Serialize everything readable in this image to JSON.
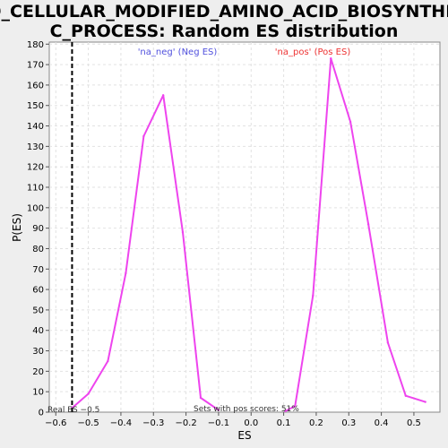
{
  "chart_data": {
    "type": "line",
    "title_line1": "GO_CELLULAR_MODIFIED_AMINO_ACID_BIOSYNTHETI",
    "title_line2": "C_PROCESS: Random ES distribution",
    "xlabel": "ES",
    "ylabel": "P(ES)",
    "xlim": [
      -0.62,
      0.58
    ],
    "ylim": [
      0,
      181
    ],
    "x_ticks": [
      -0.6,
      -0.5,
      -0.4,
      -0.3,
      -0.2,
      -0.1,
      0.0,
      0.1,
      0.2,
      0.3,
      0.4,
      0.5
    ],
    "x_tick_labels": [
      "−0.6",
      "−0.5",
      "−0.4",
      "−0.3",
      "−0.2",
      "−0.1",
      "0.0",
      "0.1",
      "0.2",
      "0.3",
      "0.4",
      "0.5"
    ],
    "y_ticks": [
      0,
      10,
      20,
      30,
      40,
      50,
      60,
      70,
      80,
      90,
      100,
      110,
      120,
      130,
      140,
      150,
      160,
      170,
      180
    ],
    "grid": true,
    "series_color": "#ee44ee",
    "series": [
      {
        "name": "na_neg",
        "points": [
          [
            -0.55,
            2
          ],
          [
            -0.5,
            9
          ],
          [
            -0.44,
            25
          ],
          [
            -0.385,
            68
          ],
          [
            -0.33,
            135
          ],
          [
            -0.27,
            155
          ],
          [
            -0.21,
            88
          ],
          [
            -0.155,
            7
          ],
          [
            -0.1,
            1
          ]
        ]
      },
      {
        "name": "na_pos",
        "points": [
          [
            0.105,
            0.5
          ],
          [
            0.135,
            3
          ],
          [
            0.19,
            57
          ],
          [
            0.245,
            173
          ],
          [
            0.305,
            142
          ],
          [
            0.36,
            92
          ],
          [
            0.42,
            34
          ],
          [
            0.475,
            8
          ],
          [
            0.535,
            5
          ]
        ]
      }
    ],
    "legend": [
      {
        "label": "'na_neg' (Neg ES)",
        "color": "#5050dd"
      },
      {
        "label": "'na_pos' (Pos ES)",
        "color": "#ee3333"
      }
    ],
    "real_es": -0.55,
    "real_es_label": "Real ES −0.5",
    "annotation": "Sets with pos scores: 51%"
  }
}
